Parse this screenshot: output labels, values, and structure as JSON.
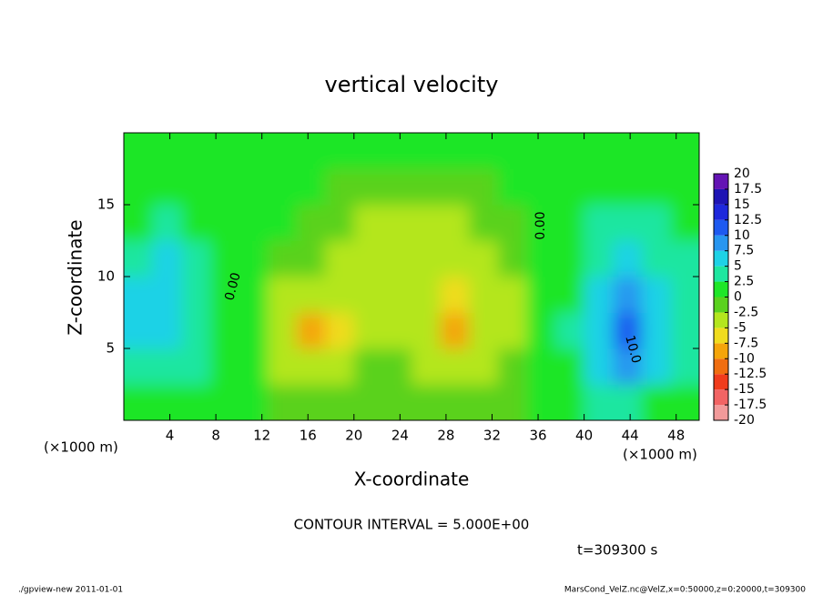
{
  "chart_data": {
    "type": "contour",
    "title": "vertical velocity",
    "x_label": "X-coordinate",
    "y_label": "Z-coordinate",
    "x_unit": "(×1000 m)",
    "y_unit": "(×1000 m)",
    "xlim": [
      0,
      50
    ],
    "xticks": [
      4,
      8,
      12,
      16,
      20,
      24,
      28,
      32,
      36,
      40,
      44,
      48
    ],
    "ylim": [
      0,
      20
    ],
    "yticks": [
      5,
      10,
      15
    ],
    "field": {
      "x": [
        1.25,
        3.75,
        6.25,
        8.75,
        11.25,
        13.75,
        16.25,
        18.75,
        21.25,
        23.75,
        26.25,
        28.75,
        31.25,
        33.75,
        36.25,
        38.75,
        41.25,
        43.75,
        46.25,
        48.75
      ],
      "z": [
        1.25,
        3.75,
        6.25,
        8.75,
        11.25,
        13.75,
        16.25,
        18.75
      ],
      "values": [
        [
          2,
          2,
          1,
          1,
          0,
          -1,
          -2,
          -2,
          -1,
          -1,
          -1,
          -2,
          -2,
          -1,
          0,
          2,
          3,
          3,
          2,
          1
        ],
        [
          3,
          4,
          3,
          1,
          0,
          -3,
          -5,
          -4,
          -2,
          -2,
          -3,
          -4,
          -4,
          -2,
          0,
          2,
          5,
          8,
          5,
          3
        ],
        [
          5,
          5,
          4,
          2,
          0,
          -4,
          -9,
          -7,
          -3,
          -3,
          -4,
          -8,
          -5,
          -3,
          0,
          3,
          7,
          12,
          7,
          4
        ],
        [
          5,
          6,
          4,
          2,
          0,
          -3,
          -5,
          -4,
          -3,
          -3,
          -4,
          -7,
          -4,
          -3,
          0,
          2,
          6,
          9,
          6,
          4
        ],
        [
          4,
          5,
          3,
          1,
          0,
          -1,
          -2,
          -3,
          -3,
          -3,
          -4,
          -5,
          -3,
          -2,
          0,
          2,
          4,
          5,
          4,
          3
        ],
        [
          2,
          3,
          2,
          1,
          0,
          0,
          -1,
          -2,
          -3,
          -3,
          -3,
          -3,
          -2,
          -1,
          0,
          1,
          3,
          3,
          3,
          2
        ],
        [
          1,
          1,
          1,
          1,
          0,
          0,
          0,
          -1,
          -1,
          -1,
          -1,
          -1,
          -1,
          0,
          0,
          1,
          1,
          2,
          1,
          1
        ],
        [
          1,
          1,
          1,
          1,
          0,
          0,
          0,
          0,
          0,
          0,
          0,
          0,
          0,
          0,
          0,
          1,
          1,
          1,
          1,
          1
        ]
      ]
    },
    "colorbar": {
      "levels": [
        20,
        17.5,
        15,
        12.5,
        10,
        7.5,
        5,
        2.5,
        0,
        -2.5,
        -5,
        -7.5,
        -10,
        -12.5,
        -15,
        -17.5,
        -20
      ],
      "colors": [
        "#f29a9a",
        "#f26464",
        "#f03c1c",
        "#f06e10",
        "#f5a50a",
        "#f0dc1e",
        "#b4e61e",
        "#5ad21e",
        "#1ee628",
        "#1ee6a0",
        "#1ed2e6",
        "#2896f0",
        "#1e5af0",
        "#1e28dc",
        "#1e14b4",
        "#6414b4"
      ]
    },
    "contour_labels": [
      "0.00",
      "0.00",
      "10.0"
    ],
    "contour_interval": "CONTOUR INTERVAL = 5.000E+00",
    "time_label": "t=309300 s",
    "footer_left": "./gpview-new   2011-01-01",
    "footer_right": "MarsCond_VelZ.nc@VelZ,x=0:50000,z=0:20000,t=309300"
  }
}
